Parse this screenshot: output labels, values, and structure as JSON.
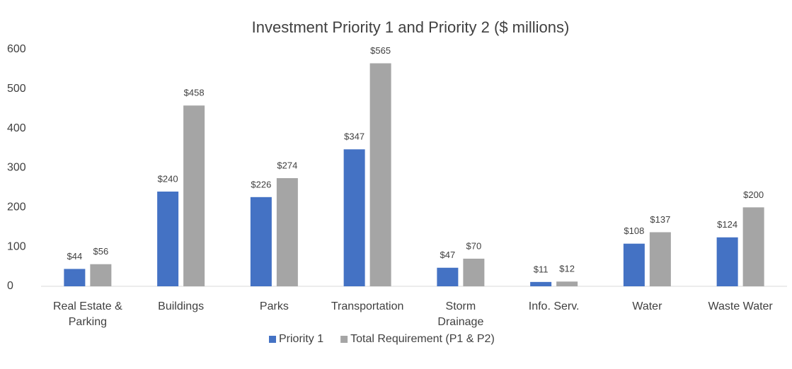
{
  "chart_data": {
    "type": "bar",
    "title": "Investment Priority 1 and Priority 2 ($ millions)",
    "categories": [
      "Real Estate &\nParking",
      "Buildings",
      "Parks",
      "Transportation",
      "Storm\nDrainage",
      "Info. Serv.",
      "Water",
      "Waste Water"
    ],
    "series": [
      {
        "name": "Priority 1",
        "color": "#4472c4",
        "values": [
          44,
          240,
          226,
          347,
          47,
          11,
          108,
          124
        ],
        "value_labels": [
          "$44",
          "$240",
          "$226",
          "$347",
          "$47",
          "$11",
          "$108",
          "$124"
        ]
      },
      {
        "name": "Total Requirement (P1 & P2)",
        "color": "#a5a5a5",
        "values": [
          56,
          458,
          274,
          565,
          70,
          12,
          137,
          200
        ],
        "value_labels": [
          "$56",
          "$458",
          "$274",
          "$565",
          "$70",
          "$12",
          "$137",
          "$200"
        ]
      }
    ],
    "ylim": [
      0,
      600
    ],
    "yticks": [
      0,
      100,
      200,
      300,
      400,
      500,
      600
    ],
    "grid": false,
    "legend": "bottom"
  }
}
